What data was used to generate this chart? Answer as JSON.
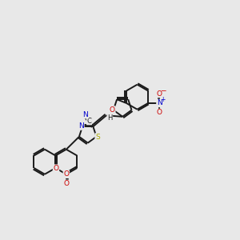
{
  "background_color": "#e8e8e8",
  "bond_color": "#1a1a1a",
  "atom_colors": {
    "N": "#0000cc",
    "O": "#cc0000",
    "S": "#aaaa00",
    "C": "#1a1a1a",
    "H": "#1a1a1a"
  },
  "figsize": [
    3.0,
    3.0
  ],
  "dpi": 100,
  "lw": 1.4
}
